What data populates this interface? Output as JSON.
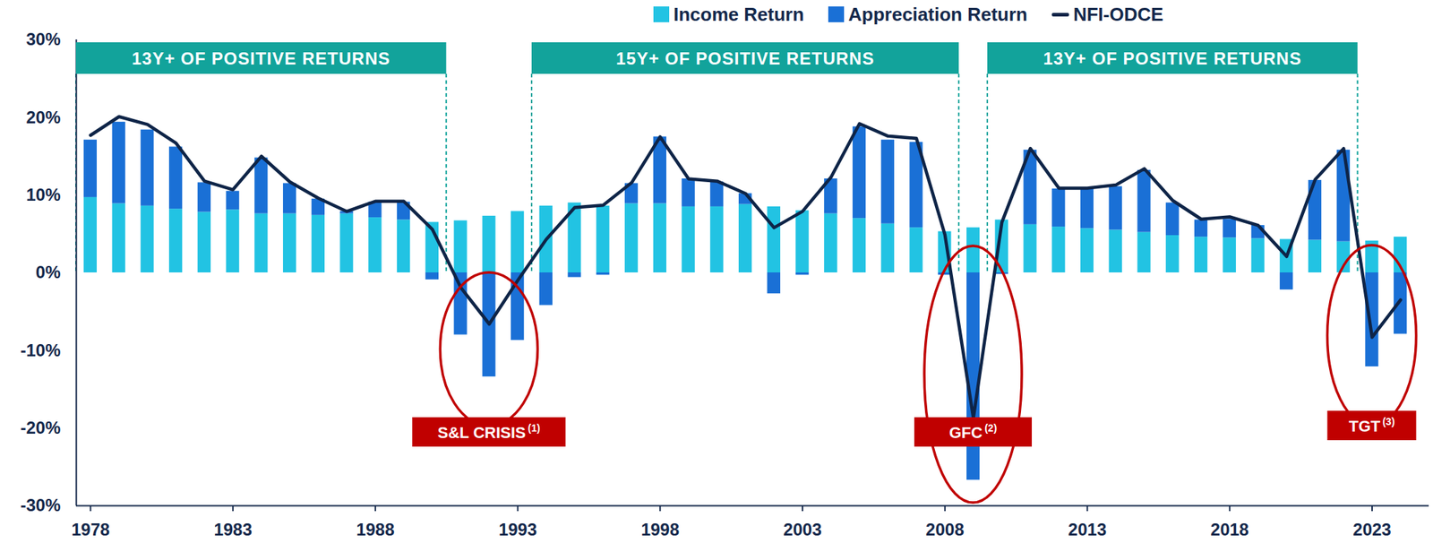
{
  "chart_data": {
    "type": "bar",
    "stacked": true,
    "legend": "top",
    "x": [
      1978,
      1979,
      1980,
      1981,
      1982,
      1983,
      1984,
      1985,
      1986,
      1987,
      1988,
      1989,
      1990,
      1991,
      1992,
      1993,
      1994,
      1995,
      1996,
      1997,
      1998,
      1999,
      2000,
      2001,
      2002,
      2003,
      2004,
      2005,
      2006,
      2007,
      2008,
      2009,
      2010,
      2011,
      2012,
      2013,
      2014,
      2015,
      2016,
      2017,
      2018,
      2019,
      2020,
      2021,
      2022,
      2023,
      2024
    ],
    "xlim": [
      1977.5,
      2025
    ],
    "xticks": [
      1978,
      1983,
      1988,
      1993,
      1998,
      2003,
      2008,
      2013,
      2018,
      2023
    ],
    "ylim": [
      -30,
      30
    ],
    "yticks": [
      {
        "value": -30,
        "label": "-30%"
      },
      {
        "value": -20,
        "label": "-20%"
      },
      {
        "value": -10,
        "label": "-10%"
      },
      {
        "value": 0,
        "label": "0%"
      },
      {
        "value": 10,
        "label": "10%"
      },
      {
        "value": 20,
        "label": "20%"
      },
      {
        "value": 30,
        "label": "30%"
      }
    ],
    "series": [
      {
        "name": "Income Return",
        "type": "bar",
        "color": "#22c3e3",
        "values": [
          9.7,
          8.9,
          8.6,
          8.2,
          7.8,
          8.1,
          7.6,
          7.6,
          7.4,
          7.6,
          7.1,
          6.8,
          6.5,
          6.7,
          7.3,
          7.9,
          8.6,
          9.0,
          8.6,
          8.9,
          8.9,
          8.5,
          8.5,
          8.8,
          8.5,
          8.0,
          7.6,
          7.0,
          6.3,
          5.8,
          5.3,
          5.8,
          6.8,
          6.2,
          5.9,
          5.7,
          5.5,
          5.2,
          4.8,
          4.6,
          4.5,
          4.4,
          4.3,
          4.2,
          4.0,
          4.1,
          4.6
        ]
      },
      {
        "name": "Appreciation Return",
        "type": "bar",
        "color": "#1a70d6",
        "values": [
          7.4,
          10.5,
          9.8,
          8.0,
          3.8,
          2.4,
          7.2,
          3.9,
          2.1,
          0.3,
          2.0,
          2.3,
          -0.9,
          -8.0,
          -13.4,
          -8.7,
          -4.2,
          -0.6,
          -0.3,
          2.6,
          8.6,
          3.6,
          3.2,
          1.4,
          -2.7,
          -0.3,
          4.5,
          11.8,
          10.8,
          11.0,
          -0.3,
          -26.7,
          -0.2,
          9.6,
          4.9,
          5.2,
          5.6,
          8.0,
          4.2,
          2.2,
          2.4,
          1.7,
          -2.2,
          7.7,
          11.8,
          -12.1,
          -7.9
        ]
      },
      {
        "name": "NFI-ODCE",
        "type": "line",
        "color": "#0e2447",
        "values": [
          17.7,
          20.1,
          19.1,
          16.7,
          11.8,
          10.7,
          15.0,
          11.7,
          9.6,
          7.9,
          9.2,
          9.2,
          5.6,
          -1.9,
          -6.6,
          -1.0,
          4.3,
          8.4,
          8.7,
          11.6,
          17.5,
          12.1,
          11.8,
          10.2,
          5.8,
          7.9,
          12.3,
          19.2,
          17.6,
          17.3,
          4.9,
          -18.7,
          6.5,
          16.0,
          10.9,
          10.9,
          11.3,
          13.4,
          9.3,
          6.9,
          7.2,
          6.1,
          2.1,
          12.0,
          16.0,
          -8.3,
          -3.5
        ]
      }
    ],
    "annotations": [
      {
        "text": "13Y+ OF POSITIVE RETURNS",
        "x1": 1978,
        "x2": 1990
      },
      {
        "text": "15Y+ OF POSITIVE RETURNS",
        "x1": 1994,
        "x2": 2008
      },
      {
        "text": "13Y+ OF POSITIVE RETURNS",
        "x1": 2010,
        "x2": 2022
      },
      {
        "text": "S&L CRISIS",
        "note": "(1)",
        "x": 1992
      },
      {
        "text": "GFC",
        "note": "(2)",
        "x": 2009
      },
      {
        "text": "TGT",
        "note": "(3)",
        "x": 2023
      }
    ]
  }
}
